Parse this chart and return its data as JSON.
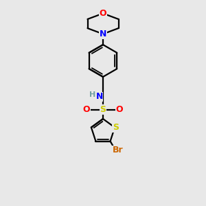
{
  "bg_color": "#e8e8e8",
  "bond_color": "#000000",
  "atom_colors": {
    "O": "#ff0000",
    "N": "#0000ff",
    "S_sulfonyl": "#cccc00",
    "S_thiophene": "#cccc00",
    "Br": "#cc6600",
    "H": "#6fa0a0",
    "C": "#000000"
  },
  "figsize": [
    3.0,
    3.0
  ],
  "dpi": 100
}
